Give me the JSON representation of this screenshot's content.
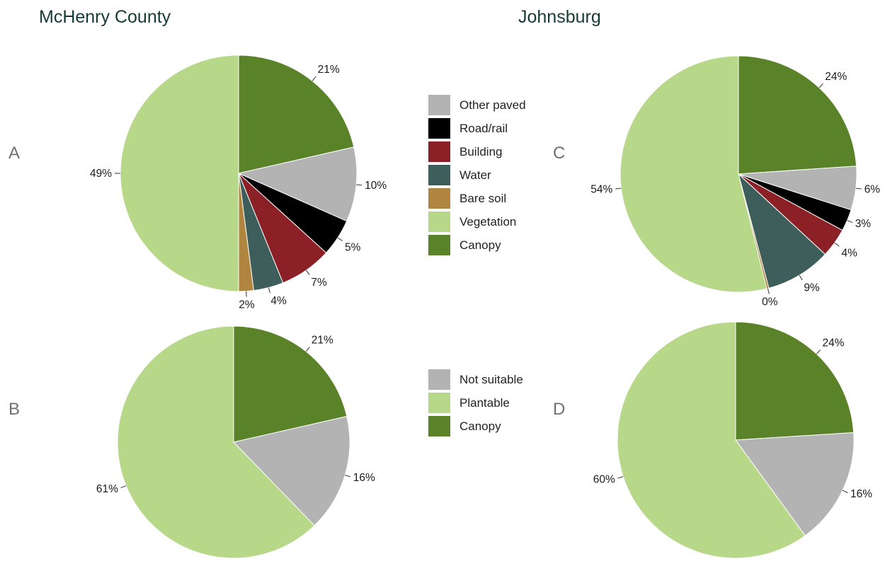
{
  "titles": {
    "left": "McHenry County",
    "right": "Johnsburg"
  },
  "panel_letters": {
    "a": "A",
    "b": "B",
    "c": "C",
    "d": "D"
  },
  "colors": {
    "Other paved": "#b3b3b3",
    "Road/rail": "#000000",
    "Building": "#8b2126",
    "Water": "#3d5e5a",
    "Bare soil": "#b08540",
    "Vegetation": "#b7d789",
    "Canopy": "#5a8229",
    "Not suitable": "#b3b3b3",
    "Plantable": "#b7d789"
  },
  "legends": [
    {
      "id": "landcover",
      "entries": [
        "Other paved",
        "Road/rail",
        "Building",
        "Water",
        "Bare soil",
        "Vegetation",
        "Canopy"
      ]
    },
    {
      "id": "plantable",
      "entries": [
        "Not suitable",
        "Plantable",
        "Canopy"
      ]
    }
  ],
  "chart_data": [
    {
      "type": "pie",
      "panel": "A",
      "title": "McHenry County",
      "slices": [
        {
          "name": "Canopy",
          "value": 21,
          "label": "21%"
        },
        {
          "name": "Other paved",
          "value": 10,
          "label": "10%"
        },
        {
          "name": "Road/rail",
          "value": 5,
          "label": "5%"
        },
        {
          "name": "Building",
          "value": 7,
          "label": "7%"
        },
        {
          "name": "Water",
          "value": 4,
          "label": "4%"
        },
        {
          "name": "Bare soil",
          "value": 2,
          "label": "2%"
        },
        {
          "name": "Vegetation",
          "value": 49,
          "label": "49%"
        }
      ]
    },
    {
      "type": "pie",
      "panel": "B",
      "title": "McHenry County",
      "slices": [
        {
          "name": "Canopy",
          "value": 21,
          "label": "21%"
        },
        {
          "name": "Not suitable",
          "value": 16,
          "label": "16%"
        },
        {
          "name": "Plantable",
          "value": 61,
          "label": "61%"
        }
      ]
    },
    {
      "type": "pie",
      "panel": "C",
      "title": "Johnsburg",
      "slices": [
        {
          "name": "Canopy",
          "value": 24,
          "label": "24%"
        },
        {
          "name": "Other paved",
          "value": 6,
          "label": "6%"
        },
        {
          "name": "Road/rail",
          "value": 3,
          "label": "3%"
        },
        {
          "name": "Building",
          "value": 4,
          "label": "4%"
        },
        {
          "name": "Water",
          "value": 9,
          "label": "9%"
        },
        {
          "name": "Bare soil",
          "value": 0.3,
          "label": "0%"
        },
        {
          "name": "Vegetation",
          "value": 54,
          "label": "54%"
        }
      ]
    },
    {
      "type": "pie",
      "panel": "D",
      "title": "Johnsburg",
      "slices": [
        {
          "name": "Canopy",
          "value": 24,
          "label": "24%"
        },
        {
          "name": "Not suitable",
          "value": 16,
          "label": "16%"
        },
        {
          "name": "Plantable",
          "value": 60,
          "label": "60%"
        }
      ]
    }
  ]
}
